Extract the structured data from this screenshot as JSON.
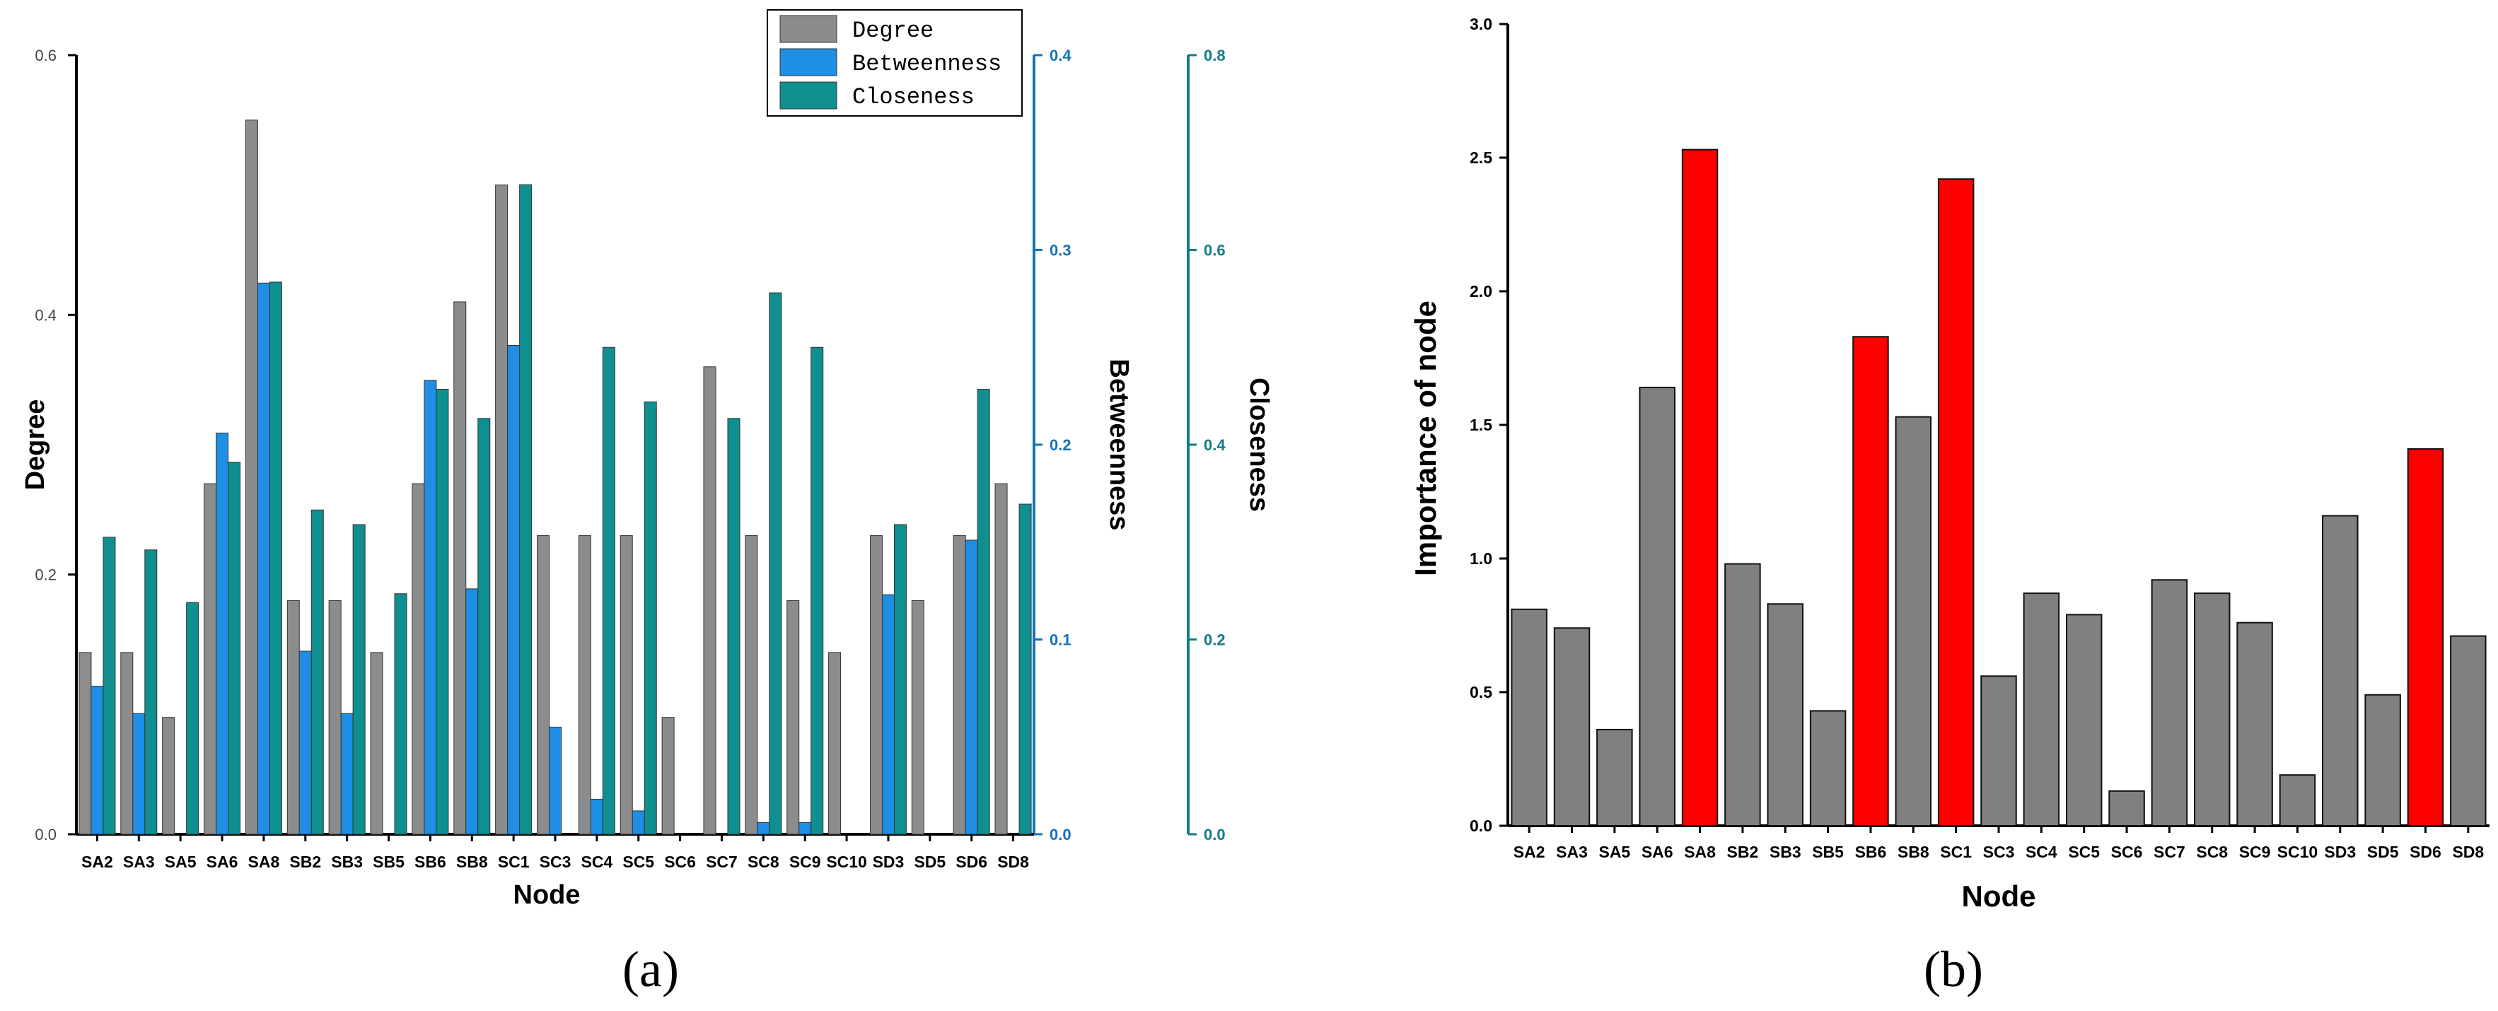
{
  "colors": {
    "degree": "#8c8c8c",
    "betweenness": "#1f8fe6",
    "closeness": "#0f8f8f",
    "normal": "#808080",
    "highlight": "#ff0000",
    "axis": "#000000",
    "betweenness_axis": "#1473b8",
    "closeness_axis": "#137c82"
  },
  "panels": {
    "a_label": "(a)",
    "b_label": "(b)"
  },
  "chart_data": [
    {
      "id": "a",
      "type": "bar",
      "title": "",
      "xlabel": "Node",
      "categories": [
        "SA2",
        "SA3",
        "SA5",
        "SA6",
        "SA8",
        "SB2",
        "SB3",
        "SB5",
        "SB6",
        "SB8",
        "SC1",
        "SC3",
        "SC4",
        "SC5",
        "SC6",
        "SC7",
        "SC8",
        "SC9",
        "SC10",
        "SD3",
        "SD5",
        "SD6",
        "SD8"
      ],
      "series": [
        {
          "name": "Degree",
          "axis": "left",
          "values": [
            0.14,
            0.14,
            0.09,
            0.27,
            0.55,
            0.18,
            0.18,
            0.14,
            0.27,
            0.41,
            0.5,
            0.23,
            0.23,
            0.23,
            0.09,
            0.36,
            0.23,
            0.18,
            0.14,
            0.23,
            0.18,
            0.23,
            0.27
          ]
        },
        {
          "name": "Betweenness",
          "axis": "right1",
          "values": [
            0.076,
            0.062,
            0,
            0.206,
            0.283,
            0.094,
            0.062,
            0,
            0.233,
            0.126,
            0.251,
            0.055,
            0.018,
            0.012,
            0,
            0,
            0.006,
            0.006,
            0,
            0.123,
            0,
            0.151,
            0
          ]
        },
        {
          "name": "Closeness",
          "axis": "right2",
          "values": [
            0.305,
            0.292,
            0.238,
            0.382,
            0.567,
            0.333,
            0.318,
            0.247,
            0.457,
            0.427,
            0.667,
            0,
            0.5,
            0.444,
            0,
            0.427,
            0.556,
            0.5,
            0,
            0.318,
            0,
            0.457,
            0.339
          ]
        }
      ],
      "axes": {
        "left": {
          "label": "Degree",
          "ylim": [
            0,
            0.6
          ],
          "ticks": [
            "0.0",
            "0.2",
            "0.4",
            "0.6"
          ]
        },
        "right1": {
          "label": "Betweenness",
          "ylim": [
            0,
            0.4
          ],
          "ticks": [
            "0.0",
            "0.1",
            "0.2",
            "0.3",
            "0.4"
          ]
        },
        "right2": {
          "label": "Closeness",
          "ylim": [
            0,
            0.8
          ],
          "ticks": [
            "0.0",
            "0.2",
            "0.4",
            "0.6",
            "0.8"
          ]
        }
      },
      "legend": {
        "position": "top-right",
        "entries": [
          "Degree",
          "Betweenness",
          "Closeness"
        ]
      }
    },
    {
      "id": "b",
      "type": "bar",
      "title": "",
      "xlabel": "Node",
      "ylabel": "Importance of node",
      "categories": [
        "SA2",
        "SA3",
        "SA5",
        "SA6",
        "SA8",
        "SB2",
        "SB3",
        "SB5",
        "SB6",
        "SB8",
        "SC1",
        "SC3",
        "SC4",
        "SC5",
        "SC6",
        "SC7",
        "SC8",
        "SC9",
        "SC10",
        "SD3",
        "SD5",
        "SD6",
        "SD8"
      ],
      "values": [
        0.81,
        0.74,
        0.36,
        1.64,
        2.53,
        0.98,
        0.83,
        0.43,
        1.83,
        1.53,
        2.42,
        0.56,
        0.87,
        0.79,
        0.13,
        0.92,
        0.87,
        0.76,
        0.19,
        1.16,
        0.49,
        1.41,
        0.71
      ],
      "highlighted": [
        "SA8",
        "SB6",
        "SC1",
        "SD6"
      ],
      "ylim": [
        0,
        3.0
      ],
      "ticks": [
        "0.0",
        "0.5",
        "1.0",
        "1.5",
        "2.0",
        "2.5",
        "3.0"
      ]
    }
  ]
}
